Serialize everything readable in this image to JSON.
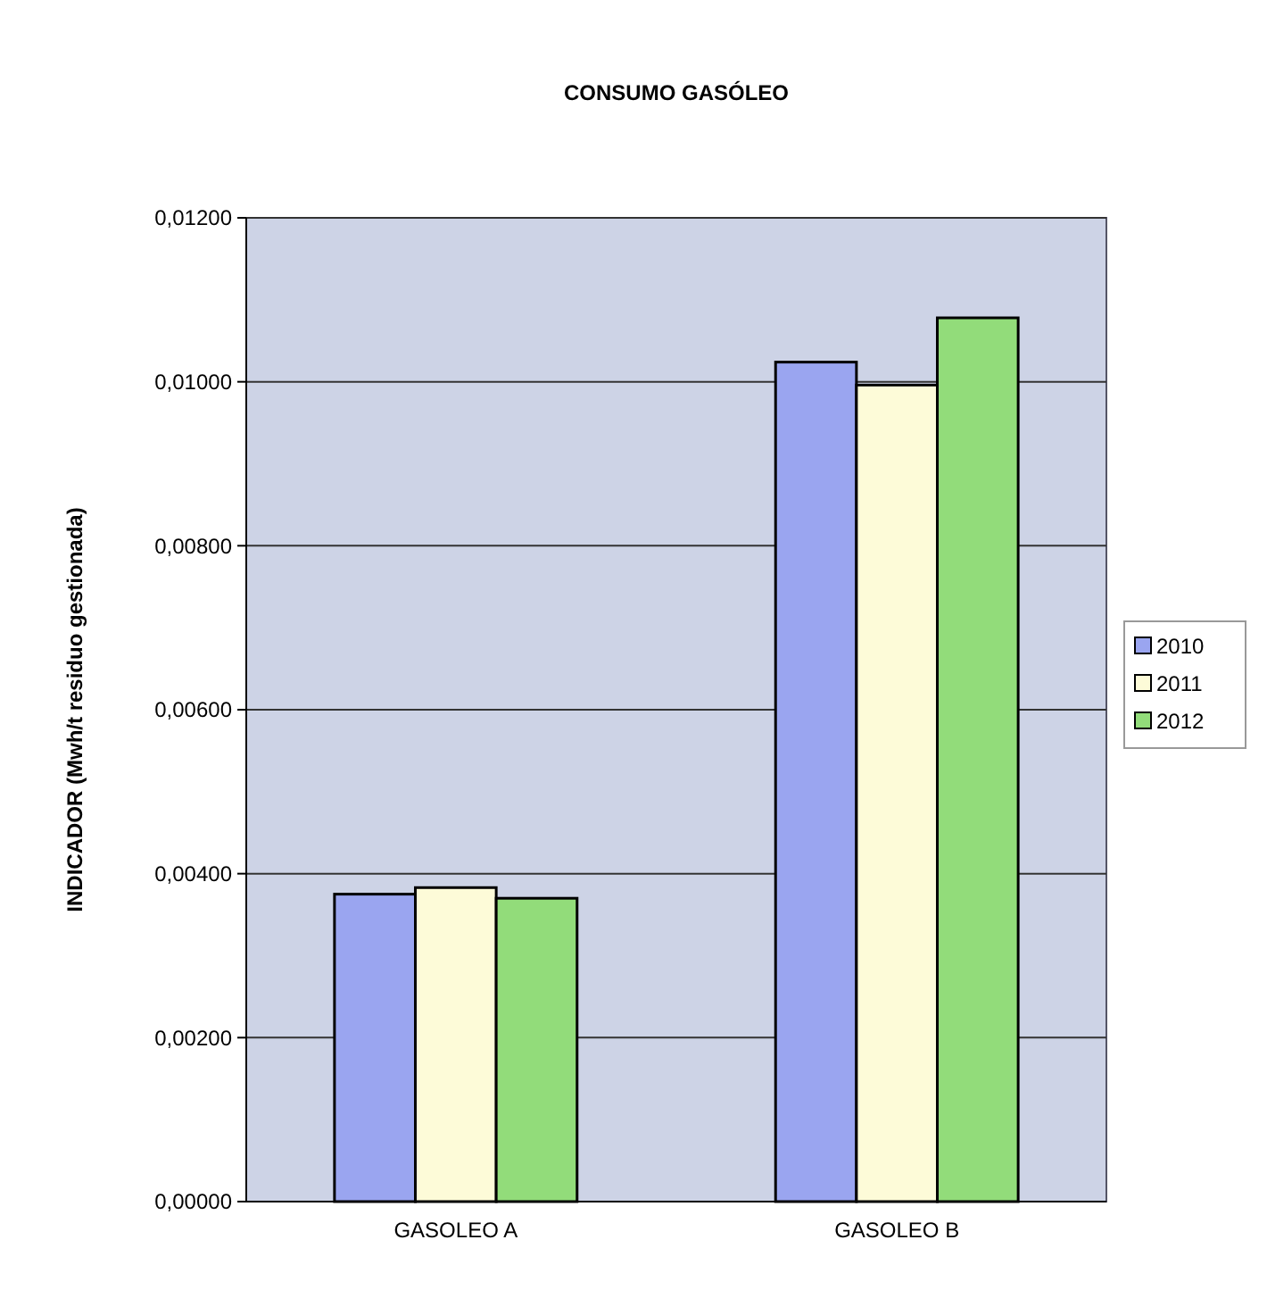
{
  "chart_data": {
    "type": "bar",
    "title": "CONSUMO GASÓLEO",
    "ylabel": "INDICADOR (Mwh/t  residuo gestionada)",
    "categories": [
      "GASOLEO A",
      "GASOLEO B"
    ],
    "series": [
      {
        "name": "2010",
        "color": "#9aa5f0",
        "values": [
          0.00375,
          0.01024
        ]
      },
      {
        "name": "2011",
        "color": "#fdfbd8",
        "values": [
          0.00383,
          0.00996
        ]
      },
      {
        "name": "2012",
        "color": "#92dc7a",
        "values": [
          0.0037,
          0.01078
        ]
      }
    ],
    "ylim": [
      0,
      0.012
    ],
    "yticks": [
      {
        "value": 0,
        "label": "0,00000"
      },
      {
        "value": 0.002,
        "label": "0,00200"
      },
      {
        "value": 0.004,
        "label": "0,00400"
      },
      {
        "value": 0.006,
        "label": "0,00600"
      },
      {
        "value": 0.008,
        "label": "0,00800"
      },
      {
        "value": 0.01,
        "label": "0,01000"
      },
      {
        "value": 0.012,
        "label": "0,01200"
      }
    ],
    "grid": "y",
    "legend": "right"
  }
}
